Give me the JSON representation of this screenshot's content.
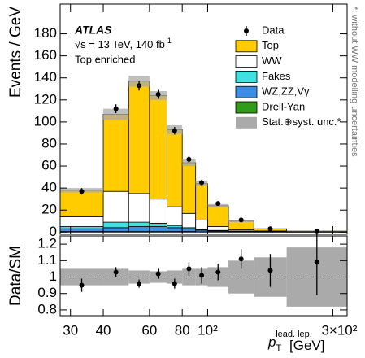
{
  "chart_data": {
    "type": "histogram",
    "atlas_label": "ATLAS",
    "energy_label": "√s = 13 TeV, 140 fb",
    "lumi_exponent": "-1",
    "region_label": "Top enriched",
    "side_note": "*: without WW modelling uncertainties",
    "y_label": "Events / GeV",
    "x_label": {
      "symbol": "p",
      "subscript": "T",
      "superscript": "lead. lep.",
      "unit": "[GeV]"
    },
    "log_x": true,
    "bins": [
      27.4,
      40,
      50,
      60,
      70,
      80,
      90,
      100,
      120,
      150,
      200,
      340
    ],
    "xlim": [
      27.4,
      340
    ],
    "xticks": [
      30,
      40,
      60,
      80,
      {
        "value": 100,
        "label": "10²"
      },
      {
        "value": 300,
        "label": "3×10²"
      }
    ],
    "ylim": [
      -2,
      207
    ],
    "yticks": [
      0,
      20,
      40,
      60,
      80,
      100,
      120,
      140,
      160,
      180
    ],
    "data": {
      "name": "Data",
      "color": "#000000",
      "values": [
        37,
        112,
        133,
        125,
        92,
        66,
        45,
        26,
        11,
        3,
        1
      ],
      "errors": [
        3,
        4,
        4.5,
        4,
        3.5,
        3,
        2.5,
        1.6,
        1,
        0.6,
        0.3
      ]
    },
    "series": [
      {
        "name": "Top",
        "color": "#ffcc00",
        "values": [
          24,
          70,
          102,
          94,
          70,
          46,
          33,
          19,
          8,
          2,
          0.7
        ]
      },
      {
        "name": "WW",
        "color": "#ffffff",
        "values": [
          9,
          28,
          26,
          22,
          17,
          13,
          8.5,
          3.5,
          1,
          0.5,
          0.1
        ]
      },
      {
        "name": "Fakes",
        "color": "#40dfe0",
        "values": [
          2,
          5,
          4,
          3,
          2,
          1,
          0.7,
          0.5,
          0.5,
          0.25,
          0.08
        ]
      },
      {
        "name": "WZ,ZZ,Vγ",
        "color": "#3a8ee6",
        "values": [
          2.5,
          3.5,
          4.5,
          4.5,
          3.5,
          2.5,
          1.5,
          0.8,
          0.4,
          0.2,
          0.1
        ]
      },
      {
        "name": "Drell-Yan",
        "color": "#339a1a",
        "values": [
          0.5,
          0.5,
          0.5,
          0.5,
          0.5,
          0.5,
          0.3,
          0.2,
          0.1,
          0.05,
          0.02
        ]
      }
    ],
    "uncertainty": {
      "name": "Stat.⊕syst. unc.*",
      "color": "#aaaaaa",
      "values": [
        2,
        5,
        5,
        4,
        4,
        3,
        2,
        1.5,
        1,
        0.5,
        0.3
      ]
    },
    "ratio": {
      "y_label": "Data/SM",
      "ylim": [
        0.765,
        1.25
      ],
      "yticks": [
        0.8,
        0.9,
        1,
        1.1,
        1.2
      ],
      "values": [
        0.95,
        1.03,
        0.96,
        1.02,
        0.96,
        1.05,
        1.01,
        1.03,
        1.11,
        1.04,
        1.09
      ],
      "errors": [
        0.04,
        0.03,
        0.025,
        0.03,
        0.03,
        0.04,
        0.05,
        0.05,
        0.06,
        0.1,
        0.2
      ],
      "band": [
        0.05,
        0.05,
        0.04,
        0.035,
        0.04,
        0.05,
        0.05,
        0.06,
        0.1,
        0.12,
        0.18
      ]
    }
  }
}
